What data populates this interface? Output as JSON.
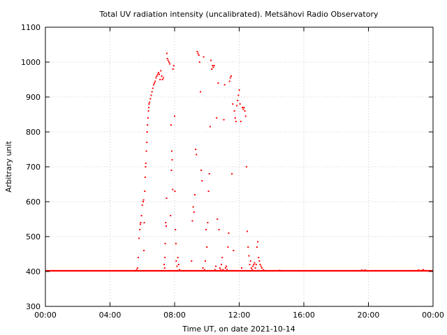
{
  "chart_data": {
    "type": "scatter",
    "title": "Total UV radiation intensity (uncalibrated). Metsähovi Radio Observatory",
    "xlabel": "Time UT, on date 2021-10-14",
    "ylabel": "Arbitrary unit",
    "xlim": [
      0,
      24
    ],
    "ylim": [
      300,
      1100
    ],
    "x_ticks": [
      {
        "value": 0,
        "label": "00:00"
      },
      {
        "value": 4,
        "label": "04:00"
      },
      {
        "value": 8,
        "label": "08:00"
      },
      {
        "value": 12,
        "label": "12:00"
      },
      {
        "value": 16,
        "label": "16:00"
      },
      {
        "value": 20,
        "label": "20:00"
      },
      {
        "value": 24,
        "label": "00:00"
      }
    ],
    "y_ticks": [
      300,
      400,
      500,
      600,
      700,
      800,
      900,
      1000,
      1100
    ],
    "grid": true,
    "marker_color": "#ff0000",
    "baseline": {
      "x_start": 0,
      "x_end": 24,
      "y": 402
    },
    "series": [
      {
        "color": "#ff0000",
        "points": [
          [
            5.65,
            405
          ],
          [
            5.7,
            410
          ],
          [
            5.75,
            440
          ],
          [
            5.8,
            495
          ],
          [
            5.85,
            520
          ],
          [
            5.88,
            535
          ],
          [
            5.9,
            540
          ],
          [
            5.95,
            560
          ],
          [
            6.0,
            590
          ],
          [
            6.05,
            600
          ],
          [
            6.08,
            605
          ],
          [
            6.1,
            460
          ],
          [
            6.12,
            540
          ],
          [
            6.15,
            630
          ],
          [
            6.18,
            670
          ],
          [
            6.2,
            700
          ],
          [
            6.22,
            710
          ],
          [
            6.25,
            745
          ],
          [
            6.28,
            770
          ],
          [
            6.3,
            800
          ],
          [
            6.32,
            820
          ],
          [
            6.35,
            840
          ],
          [
            6.38,
            860
          ],
          [
            6.4,
            870
          ],
          [
            6.42,
            880
          ],
          [
            6.45,
            885
          ],
          [
            6.5,
            895
          ],
          [
            6.55,
            905
          ],
          [
            6.6,
            915
          ],
          [
            6.65,
            925
          ],
          [
            6.7,
            935
          ],
          [
            6.75,
            940
          ],
          [
            6.8,
            945
          ],
          [
            6.85,
            955
          ],
          [
            6.9,
            960
          ],
          [
            6.95,
            965
          ],
          [
            7.0,
            970
          ],
          [
            7.05,
            965
          ],
          [
            7.1,
            950
          ],
          [
            7.15,
            975
          ],
          [
            7.2,
            960
          ],
          [
            7.25,
            950
          ],
          [
            7.3,
            955
          ],
          [
            7.35,
            420
          ],
          [
            7.38,
            410
          ],
          [
            7.4,
            440
          ],
          [
            7.42,
            480
          ],
          [
            7.45,
            540
          ],
          [
            7.48,
            530
          ],
          [
            7.5,
            610
          ],
          [
            7.52,
            1025
          ],
          [
            7.55,
            1010
          ],
          [
            7.6,
            1005
          ],
          [
            7.65,
            1000
          ],
          [
            7.7,
            995
          ],
          [
            7.75,
            560
          ],
          [
            7.78,
            820
          ],
          [
            7.8,
            690
          ],
          [
            7.82,
            745
          ],
          [
            7.85,
            720
          ],
          [
            7.88,
            635
          ],
          [
            7.9,
            980
          ],
          [
            7.95,
            990
          ],
          [
            8.0,
            845
          ],
          [
            8.02,
            630
          ],
          [
            8.05,
            520
          ],
          [
            8.08,
            480
          ],
          [
            8.1,
            430
          ],
          [
            8.15,
            415
          ],
          [
            8.2,
            440
          ],
          [
            8.25,
            420
          ],
          [
            8.3,
            405
          ],
          [
            8.4,
            402
          ],
          [
            8.5,
            402
          ],
          [
            8.6,
            402
          ],
          [
            8.7,
            402
          ],
          [
            8.8,
            402
          ],
          [
            8.9,
            402
          ],
          [
            9.05,
            430
          ],
          [
            9.1,
            545
          ],
          [
            9.15,
            585
          ],
          [
            9.2,
            570
          ],
          [
            9.25,
            620
          ],
          [
            9.3,
            750
          ],
          [
            9.35,
            735
          ],
          [
            9.4,
            1030
          ],
          [
            9.45,
            1025
          ],
          [
            9.5,
            1020
          ],
          [
            9.55,
            1000
          ],
          [
            9.6,
            915
          ],
          [
            9.65,
            690
          ],
          [
            9.7,
            660
          ],
          [
            9.75,
            410
          ],
          [
            9.8,
            1015
          ],
          [
            9.85,
            405
          ],
          [
            9.9,
            430
          ],
          [
            9.95,
            520
          ],
          [
            10.0,
            470
          ],
          [
            10.05,
            540
          ],
          [
            10.1,
            630
          ],
          [
            10.15,
            680
          ],
          [
            10.2,
            815
          ],
          [
            10.25,
            1005
          ],
          [
            10.3,
            980
          ],
          [
            10.35,
            990
          ],
          [
            10.4,
            985
          ],
          [
            10.45,
            990
          ],
          [
            10.5,
            405
          ],
          [
            10.55,
            415
          ],
          [
            10.6,
            840
          ],
          [
            10.65,
            550
          ],
          [
            10.7,
            940
          ],
          [
            10.75,
            520
          ],
          [
            10.8,
            410
          ],
          [
            10.85,
            405
          ],
          [
            10.9,
            420
          ],
          [
            10.95,
            440
          ],
          [
            11.0,
            405
          ],
          [
            11.05,
            835
          ],
          [
            11.1,
            935
          ],
          [
            11.15,
            410
          ],
          [
            11.2,
            415
          ],
          [
            11.25,
            405
          ],
          [
            11.3,
            470
          ],
          [
            11.35,
            510
          ],
          [
            11.4,
            945
          ],
          [
            11.45,
            955
          ],
          [
            11.5,
            960
          ],
          [
            11.55,
            680
          ],
          [
            11.6,
            880
          ],
          [
            11.65,
            460
          ],
          [
            11.7,
            860
          ],
          [
            11.75,
            840
          ],
          [
            11.8,
            830
          ],
          [
            11.85,
            875
          ],
          [
            11.9,
            890
          ],
          [
            11.95,
            905
          ],
          [
            12.0,
            920
          ],
          [
            12.05,
            880
          ],
          [
            12.1,
            830
          ],
          [
            12.15,
            410
          ],
          [
            12.2,
            870
          ],
          [
            12.25,
            865
          ],
          [
            12.3,
            870
          ],
          [
            12.35,
            860
          ],
          [
            12.4,
            845
          ],
          [
            12.45,
            700
          ],
          [
            12.5,
            515
          ],
          [
            12.55,
            470
          ],
          [
            12.6,
            445
          ],
          [
            12.65,
            420
          ],
          [
            12.7,
            430
          ],
          [
            12.75,
            410
          ],
          [
            12.8,
            405
          ],
          [
            12.85,
            415
          ],
          [
            12.9,
            420
          ],
          [
            12.95,
            425
          ],
          [
            13.0,
            410
          ],
          [
            13.05,
            420
          ],
          [
            13.1,
            470
          ],
          [
            13.15,
            485
          ],
          [
            13.2,
            440
          ],
          [
            13.25,
            430
          ],
          [
            13.3,
            420
          ],
          [
            13.35,
            415
          ],
          [
            13.4,
            410
          ],
          [
            13.5,
            405
          ],
          [
            13.6,
            402
          ],
          [
            13.7,
            402
          ],
          [
            14.0,
            402
          ],
          [
            14.5,
            403
          ],
          [
            19.6,
            404
          ],
          [
            19.8,
            404
          ],
          [
            23.1,
            404
          ],
          [
            23.3,
            403
          ],
          [
            23.4,
            405
          ]
        ]
      }
    ]
  }
}
